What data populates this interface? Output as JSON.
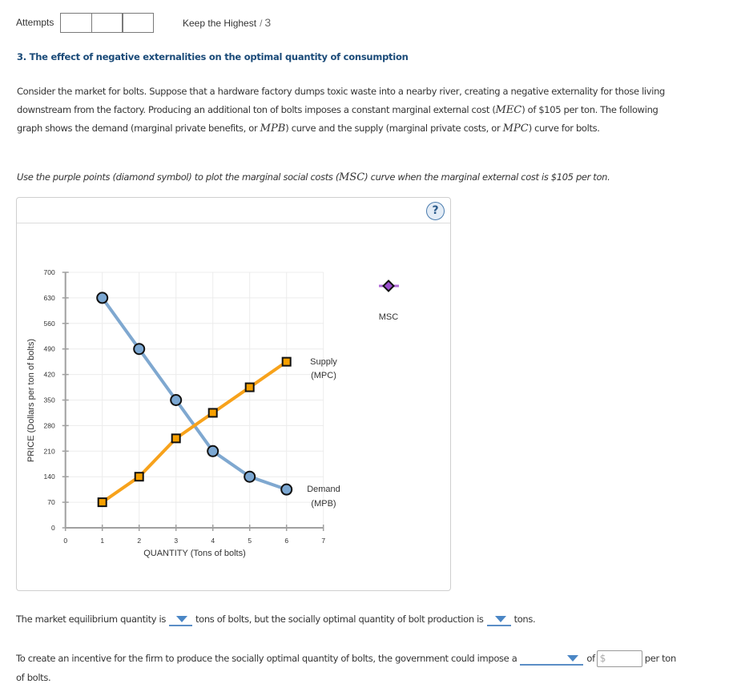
{
  "header": {
    "attempts_label": "Attempts",
    "attempt_scores": [
      "",
      "",
      ""
    ],
    "grading_policy": "Keep the Highest",
    "score_separator": "/",
    "max_score": "3"
  },
  "question": {
    "title": "3. The effect of negative externalities on the optimal quantity of consumption",
    "intro_lines": [
      [
        "Consider the market for bolts. Suppose that a hardware factory dumps toxic waste into a nearby river, creating a negative externality for those living"
      ],
      [
        "downstream from the factory. Producing an additional ton of bolts imposes a constant marginal external cost (",
        "MEC",
        ") of $105 per ton. The following"
      ],
      [
        "graph shows the demand (marginal private benefits, or ",
        "MPB",
        ") curve and the supply (marginal private costs, or ",
        "MPC",
        ") curve for bolts."
      ]
    ],
    "instruction": [
      "Use the purple points (diamond symbol) to plot the marginal social costs (",
      "MSC",
      ") curve when the marginal external cost is $105 per ton."
    ]
  },
  "graph_panel": {
    "help_icon": "question-mark-icon",
    "help_label": "?"
  },
  "chart_data": {
    "type": "line",
    "title": "",
    "xlabel": "QUANTITY (Tons of bolts)",
    "ylabel": "PRICE (Dollars per ton of bolts)",
    "xlim": [
      0,
      7
    ],
    "ylim": [
      0,
      700
    ],
    "xticks": [
      0,
      1,
      2,
      3,
      4,
      5,
      6,
      7
    ],
    "yticks": [
      0,
      70,
      140,
      210,
      280,
      350,
      420,
      490,
      560,
      630,
      700
    ],
    "grid": true,
    "x": [
      1,
      2,
      3,
      4,
      5,
      6
    ],
    "series": [
      {
        "name": "Demand (MPB)",
        "legend_lines": [
          "Demand",
          "(MPB)"
        ],
        "marker": "circle",
        "color": "#7fa8d0",
        "marker_fill": "#7ba7d2",
        "values": [
          630,
          490,
          350,
          210,
          140,
          105
        ]
      },
      {
        "name": "Supply (MPC)",
        "legend_lines": [
          "Supply",
          "(MPC)"
        ],
        "marker": "square",
        "color": "#f7a21b",
        "marker_fill": "#f7a000",
        "values": [
          70,
          140,
          245,
          315,
          385,
          455
        ]
      },
      {
        "name": "MSC",
        "legend_lines": [
          "MSC"
        ],
        "marker": "diamond",
        "color": "#b06ad8",
        "marker_fill": "#9b4fcf",
        "values": [],
        "legend_tool": true
      }
    ]
  },
  "answers": {
    "q1": {
      "text_before": "The market equilibrium quantity is",
      "dropdown_equilibrium": {
        "selected": ""
      },
      "text_middle": "tons of bolts, but the socially optimal quantity of bolt production is",
      "dropdown_optimal": {
        "selected": ""
      },
      "text_after": "tons."
    },
    "q2": {
      "text_before": "To create an incentive for the firm to produce the socially optimal quantity of bolts, the government could impose a",
      "dropdown_policy": {
        "selected": ""
      },
      "text_of": "of",
      "currency_prefix": "$",
      "amount_value": "",
      "text_per_ton": "per ton",
      "text_wrap": "of bolts."
    }
  }
}
